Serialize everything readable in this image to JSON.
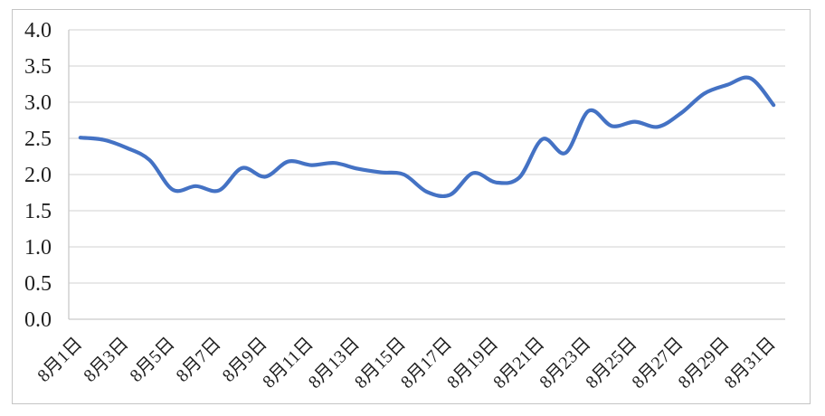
{
  "chart_data": {
    "type": "line",
    "title": "",
    "xlabel": "",
    "ylabel": "",
    "legend": "none",
    "grid": "horizontal",
    "smooth": true,
    "x_days": [
      1,
      2,
      3,
      4,
      5,
      6,
      7,
      8,
      9,
      10,
      11,
      12,
      13,
      14,
      15,
      16,
      17,
      18,
      19,
      20,
      21,
      22,
      23,
      24,
      25,
      26,
      27,
      28,
      29,
      30,
      31
    ],
    "values": [
      2.51,
      2.48,
      2.37,
      2.2,
      1.79,
      1.84,
      1.78,
      2.09,
      1.97,
      2.18,
      2.13,
      2.16,
      2.08,
      2.03,
      2.0,
      1.76,
      1.72,
      2.02,
      1.89,
      1.96,
      2.49,
      2.3,
      2.88,
      2.67,
      2.73,
      2.66,
      2.85,
      3.12,
      3.24,
      3.33,
      2.96
    ],
    "xtick_days": [
      1,
      3,
      5,
      7,
      9,
      11,
      13,
      15,
      17,
      19,
      21,
      23,
      25,
      27,
      29,
      31
    ],
    "xtick_labels": [
      "8月1日",
      "8月3日",
      "8月5日",
      "8月7日",
      "8月9日",
      "8月11日",
      "8月13日",
      "8月15日",
      "8月17日",
      "8月19日",
      "8月21日",
      "8月23日",
      "8月25日",
      "8月27日",
      "8月29日",
      "8月31日"
    ],
    "ytick_values": [
      0.0,
      0.5,
      1.0,
      1.5,
      2.0,
      2.5,
      3.0,
      3.5,
      4.0
    ],
    "ytick_labels": [
      "0.0",
      "0.5",
      "1.0",
      "1.5",
      "2.0",
      "2.5",
      "3.0",
      "3.5",
      "4.0"
    ],
    "ylim": [
      0.0,
      4.0
    ],
    "colors": {
      "line": "#4472C4",
      "gridline": "#D9D9D9",
      "axis_line": "#C9C9C9",
      "tick_label": "#1F1F1F",
      "frame_border": "#C5C5C5",
      "background": "#FFFFFF"
    }
  }
}
